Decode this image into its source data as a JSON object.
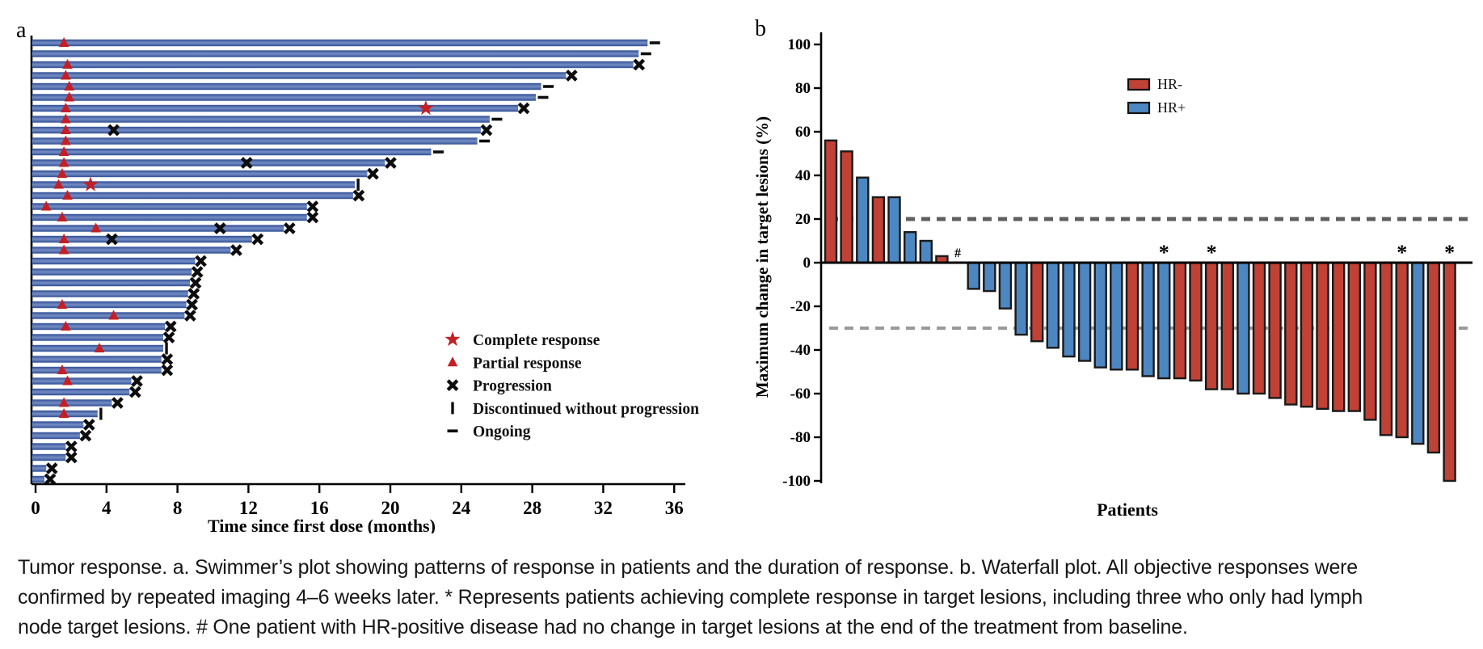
{
  "caption": {
    "lines": [
      "Tumor response. a. Swimmer’s plot showing patterns of response in patients and the duration of response. b. Waterfall plot. All objective responses were",
      "confirmed by repeated imaging 4–6 weeks later. * Represents patients achieving complete response in target lesions, including three who only had lymph",
      "node target lesions. # One patient with HR-positive disease had no change in target lesions at the end of the treatment from baseline."
    ]
  },
  "colors": {
    "swimmer_bar_dark": "#2e4d94",
    "swimmer_bar_light": "#7088c1",
    "response_red": "#c41f25",
    "hr_negative": "#c04135",
    "hr_positive": "#4d87c1",
    "bar_outline": "#1a1a1a",
    "axis_black": "#000000",
    "ref_line_20": "#5f5f5f",
    "ref_line_30": "#9a9a9a"
  },
  "chart_data": [
    {
      "type": "bar",
      "variant": "swimmer",
      "panel_label": "a",
      "xlabel": "Time since first dose (months)",
      "x_ticks": [
        0,
        4,
        8,
        12,
        16,
        20,
        24,
        28,
        32,
        36
      ],
      "xlim": [
        0,
        36.6
      ],
      "grid": false,
      "legend_position": "inside-right",
      "legend": [
        {
          "marker": "star",
          "label": "Complete response"
        },
        {
          "marker": "triangle",
          "label": "Partial response"
        },
        {
          "marker": "x",
          "label": "Progression"
        },
        {
          "marker": "vbar",
          "label": "Discontinued without progression"
        },
        {
          "marker": "dash",
          "label": "Ongoing"
        }
      ],
      "patients": [
        {
          "duration": 34.5,
          "end": "ongoing",
          "partial_response_at": [
            1.6
          ],
          "complete_response_at": [],
          "progression_at": []
        },
        {
          "duration": 34.0,
          "end": "ongoing",
          "partial_response_at": [],
          "complete_response_at": [],
          "progression_at": []
        },
        {
          "duration": 33.7,
          "end": "progression",
          "partial_response_at": [
            1.8
          ],
          "complete_response_at": [],
          "progression_at": []
        },
        {
          "duration": 29.9,
          "end": "progression",
          "partial_response_at": [
            1.7
          ],
          "complete_response_at": [],
          "progression_at": []
        },
        {
          "duration": 28.5,
          "end": "ongoing",
          "partial_response_at": [
            1.9
          ],
          "complete_response_at": [],
          "progression_at": []
        },
        {
          "duration": 28.2,
          "end": "ongoing",
          "partial_response_at": [
            1.9
          ],
          "complete_response_at": [],
          "progression_at": []
        },
        {
          "duration": 27.2,
          "end": "progression",
          "partial_response_at": [
            1.7
          ],
          "complete_response_at": [
            22.0
          ],
          "progression_at": []
        },
        {
          "duration": 25.6,
          "end": "ongoing",
          "partial_response_at": [
            1.7
          ],
          "complete_response_at": [],
          "progression_at": []
        },
        {
          "duration": 25.1,
          "end": "progression",
          "partial_response_at": [
            1.7
          ],
          "complete_response_at": [],
          "progression_at": [
            4.4
          ]
        },
        {
          "duration": 24.9,
          "end": "ongoing",
          "partial_response_at": [
            1.7
          ],
          "complete_response_at": [],
          "progression_at": []
        },
        {
          "duration": 22.3,
          "end": "ongoing",
          "partial_response_at": [
            1.6
          ],
          "complete_response_at": [],
          "progression_at": []
        },
        {
          "duration": 19.7,
          "end": "progression",
          "partial_response_at": [
            1.6
          ],
          "complete_response_at": [],
          "progression_at": [
            11.9
          ]
        },
        {
          "duration": 18.7,
          "end": "progression",
          "partial_response_at": [
            1.5
          ],
          "complete_response_at": [],
          "progression_at": []
        },
        {
          "duration": 18.0,
          "end": "discontinued",
          "partial_response_at": [
            1.3
          ],
          "complete_response_at": [
            3.1
          ],
          "progression_at": []
        },
        {
          "duration": 17.9,
          "end": "progression",
          "partial_response_at": [
            1.8
          ],
          "complete_response_at": [],
          "progression_at": []
        },
        {
          "duration": 15.3,
          "end": "progression",
          "partial_response_at": [
            0.6
          ],
          "complete_response_at": [],
          "progression_at": []
        },
        {
          "duration": 15.3,
          "end": "progression",
          "partial_response_at": [
            1.5
          ],
          "complete_response_at": [],
          "progression_at": []
        },
        {
          "duration": 14.0,
          "end": "progression",
          "partial_response_at": [
            3.4
          ],
          "complete_response_at": [],
          "progression_at": [
            10.4
          ]
        },
        {
          "duration": 12.2,
          "end": "progression",
          "partial_response_at": [
            1.6
          ],
          "complete_response_at": [],
          "progression_at": [
            4.3
          ]
        },
        {
          "duration": 11.0,
          "end": "progression",
          "partial_response_at": [
            1.6
          ],
          "complete_response_at": [],
          "progression_at": []
        },
        {
          "duration": 9.0,
          "end": "progression",
          "partial_response_at": [],
          "complete_response_at": [],
          "progression_at": []
        },
        {
          "duration": 8.8,
          "end": "progression",
          "partial_response_at": [],
          "complete_response_at": [],
          "progression_at": []
        },
        {
          "duration": 8.7,
          "end": "progression",
          "partial_response_at": [],
          "complete_response_at": [],
          "progression_at": []
        },
        {
          "duration": 8.6,
          "end": "progression",
          "partial_response_at": [],
          "complete_response_at": [],
          "progression_at": []
        },
        {
          "duration": 8.5,
          "end": "progression",
          "partial_response_at": [
            1.5
          ],
          "complete_response_at": [],
          "progression_at": []
        },
        {
          "duration": 8.4,
          "end": "progression",
          "partial_response_at": [
            4.4
          ],
          "complete_response_at": [],
          "progression_at": []
        },
        {
          "duration": 7.3,
          "end": "progression",
          "partial_response_at": [
            1.7
          ],
          "complete_response_at": [],
          "progression_at": []
        },
        {
          "duration": 7.2,
          "end": "progression",
          "partial_response_at": [],
          "complete_response_at": [],
          "progression_at": []
        },
        {
          "duration": 7.2,
          "end": "discontinued",
          "partial_response_at": [
            3.6
          ],
          "complete_response_at": [],
          "progression_at": []
        },
        {
          "duration": 7.1,
          "end": "progression",
          "partial_response_at": [],
          "complete_response_at": [],
          "progression_at": []
        },
        {
          "duration": 7.1,
          "end": "progression",
          "partial_response_at": [
            1.5
          ],
          "complete_response_at": [],
          "progression_at": []
        },
        {
          "duration": 5.4,
          "end": "progression",
          "partial_response_at": [
            1.8
          ],
          "complete_response_at": [],
          "progression_at": []
        },
        {
          "duration": 5.3,
          "end": "progression",
          "partial_response_at": [],
          "complete_response_at": [],
          "progression_at": []
        },
        {
          "duration": 4.3,
          "end": "progression",
          "partial_response_at": [
            1.6
          ],
          "complete_response_at": [],
          "progression_at": []
        },
        {
          "duration": 3.5,
          "end": "discontinued",
          "partial_response_at": [
            1.6
          ],
          "complete_response_at": [],
          "progression_at": []
        },
        {
          "duration": 2.7,
          "end": "progression",
          "partial_response_at": [],
          "complete_response_at": [],
          "progression_at": []
        },
        {
          "duration": 2.5,
          "end": "progression",
          "partial_response_at": [],
          "complete_response_at": [],
          "progression_at": []
        },
        {
          "duration": 1.7,
          "end": "progression",
          "partial_response_at": [],
          "complete_response_at": [],
          "progression_at": []
        },
        {
          "duration": 1.7,
          "end": "progression",
          "partial_response_at": [],
          "complete_response_at": [],
          "progression_at": []
        },
        {
          "duration": 0.6,
          "end": "progression",
          "partial_response_at": [],
          "complete_response_at": [],
          "progression_at": []
        },
        {
          "duration": 0.5,
          "end": "progression",
          "partial_response_at": [],
          "complete_response_at": [],
          "progression_at": []
        }
      ]
    },
    {
      "type": "bar",
      "variant": "waterfall",
      "panel_label": "b",
      "ylabel": "Maximum change in target lesions (%)",
      "xlabel": "Patients",
      "ylim": [
        -100,
        100
      ],
      "y_ticks": [
        100,
        80,
        60,
        40,
        20,
        0,
        -20,
        -40,
        -60,
        -80,
        -100
      ],
      "reference_lines": [
        {
          "y": 20,
          "style": "dashed"
        },
        {
          "y": -30,
          "style": "dashed"
        }
      ],
      "grid": false,
      "legend_position": "inside-top-right",
      "legend": [
        {
          "label": "HR-",
          "group": "HR-"
        },
        {
          "label": "HR+",
          "group": "HR+"
        }
      ],
      "bars": [
        {
          "value": 56,
          "group": "HR-",
          "note": ""
        },
        {
          "value": 51,
          "group": "HR-",
          "note": ""
        },
        {
          "value": 39,
          "group": "HR+",
          "note": ""
        },
        {
          "value": 30,
          "group": "HR-",
          "note": ""
        },
        {
          "value": 30,
          "group": "HR+",
          "note": ""
        },
        {
          "value": 14,
          "group": "HR+",
          "note": ""
        },
        {
          "value": 10,
          "group": "HR+",
          "note": ""
        },
        {
          "value": 3,
          "group": "HR-",
          "note": ""
        },
        {
          "value": 0,
          "group": "HR+",
          "note": "#"
        },
        {
          "value": -12,
          "group": "HR+",
          "note": ""
        },
        {
          "value": -13,
          "group": "HR+",
          "note": ""
        },
        {
          "value": -21,
          "group": "HR+",
          "note": ""
        },
        {
          "value": -33,
          "group": "HR+",
          "note": ""
        },
        {
          "value": -36,
          "group": "HR-",
          "note": ""
        },
        {
          "value": -39,
          "group": "HR+",
          "note": ""
        },
        {
          "value": -43,
          "group": "HR+",
          "note": ""
        },
        {
          "value": -45,
          "group": "HR+",
          "note": ""
        },
        {
          "value": -48,
          "group": "HR+",
          "note": ""
        },
        {
          "value": -49,
          "group": "HR+",
          "note": ""
        },
        {
          "value": -49,
          "group": "HR-",
          "note": ""
        },
        {
          "value": -52,
          "group": "HR+",
          "note": ""
        },
        {
          "value": -53,
          "group": "HR+",
          "note": "*"
        },
        {
          "value": -53,
          "group": "HR-",
          "note": ""
        },
        {
          "value": -54,
          "group": "HR-",
          "note": ""
        },
        {
          "value": -58,
          "group": "HR-",
          "note": "*"
        },
        {
          "value": -58,
          "group": "HR-",
          "note": ""
        },
        {
          "value": -60,
          "group": "HR+",
          "note": ""
        },
        {
          "value": -60,
          "group": "HR-",
          "note": ""
        },
        {
          "value": -62,
          "group": "HR-",
          "note": ""
        },
        {
          "value": -65,
          "group": "HR-",
          "note": ""
        },
        {
          "value": -66,
          "group": "HR-",
          "note": ""
        },
        {
          "value": -67,
          "group": "HR-",
          "note": ""
        },
        {
          "value": -68,
          "group": "HR-",
          "note": ""
        },
        {
          "value": -68,
          "group": "HR-",
          "note": ""
        },
        {
          "value": -72,
          "group": "HR-",
          "note": ""
        },
        {
          "value": -79,
          "group": "HR-",
          "note": ""
        },
        {
          "value": -80,
          "group": "HR-",
          "note": "*"
        },
        {
          "value": -83,
          "group": "HR+",
          "note": ""
        },
        {
          "value": -87,
          "group": "HR-",
          "note": ""
        },
        {
          "value": -100,
          "group": "HR-",
          "note": "*"
        }
      ]
    }
  ]
}
